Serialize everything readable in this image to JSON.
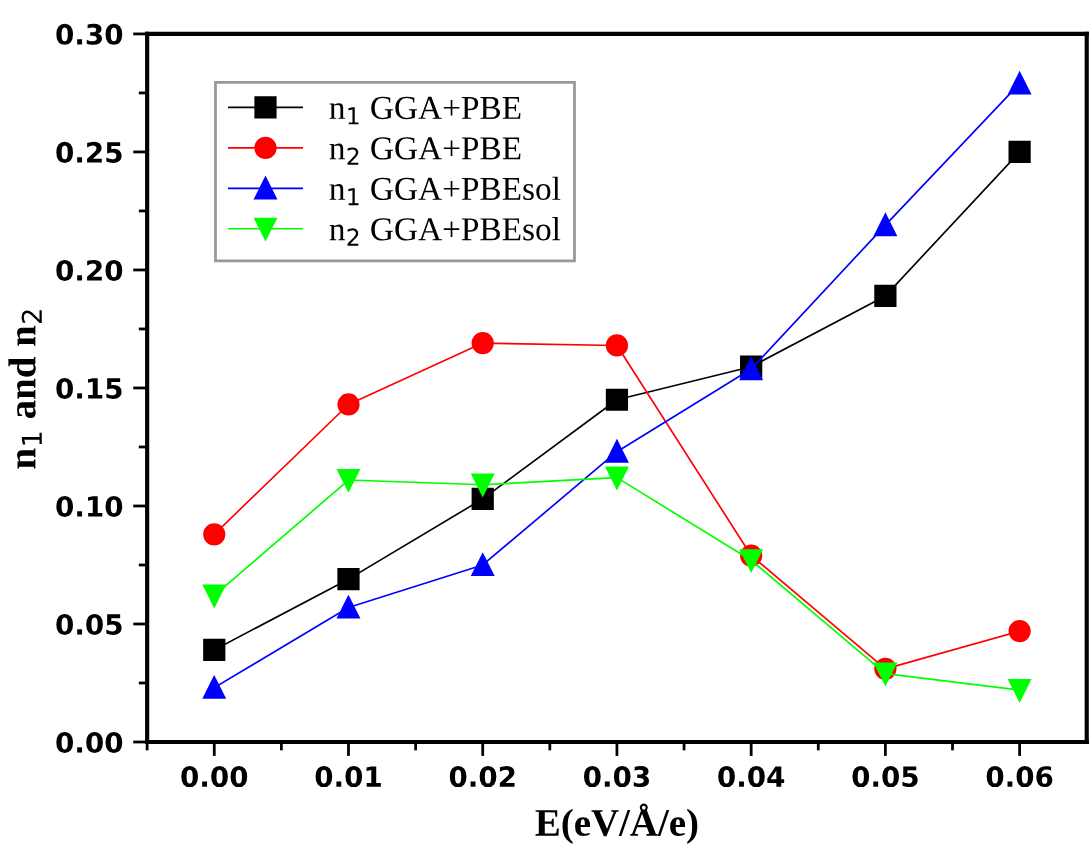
{
  "chart_data": {
    "type": "line",
    "xlabel": "E(eV/Å/e)",
    "ylabel": "n$_{1}$ and n$_{2}$",
    "x": [
      0.0,
      0.01,
      0.02,
      0.03,
      0.04,
      0.05,
      0.06
    ],
    "xlim": [
      -0.005,
      0.065
    ],
    "xticks": [
      {
        "value": 0.0,
        "label": "0.00"
      },
      {
        "value": 0.01,
        "label": "0.01"
      },
      {
        "value": 0.02,
        "label": "0.02"
      },
      {
        "value": 0.03,
        "label": "0.03"
      },
      {
        "value": 0.04,
        "label": "0.04"
      },
      {
        "value": 0.05,
        "label": "0.05"
      },
      {
        "value": 0.06,
        "label": "0.06"
      }
    ],
    "ylim": [
      0.0,
      0.3
    ],
    "yticks": [
      {
        "value": 0.0,
        "label": "0.00"
      },
      {
        "value": 0.05,
        "label": "0.05"
      },
      {
        "value": 0.1,
        "label": "0.10"
      },
      {
        "value": 0.15,
        "label": "0.15"
      },
      {
        "value": 0.2,
        "label": "0.20"
      },
      {
        "value": 0.25,
        "label": "0.25"
      },
      {
        "value": 0.3,
        "label": "0.30"
      }
    ],
    "series": [
      {
        "name": "n$_{1}$ GGA+PBE",
        "color": "#000000",
        "marker": "square",
        "values": [
          0.039,
          0.069,
          0.103,
          0.145,
          0.159,
          0.189,
          0.25
        ]
      },
      {
        "name": "n$_{2}$ GGA+PBE",
        "color": "#ff0000",
        "marker": "circle",
        "values": [
          0.088,
          0.143,
          0.169,
          0.168,
          0.079,
          0.031,
          0.047
        ]
      },
      {
        "name": "n$_{1}$ GGA+PBEsol",
        "color": "#0000ff",
        "marker": "triangle",
        "values": [
          0.023,
          0.057,
          0.075,
          0.123,
          0.158,
          0.219,
          0.279
        ]
      },
      {
        "name": "n$_{2}$ GGA+PBEsol",
        "color": "#00ff00",
        "marker": "triangle_down",
        "values": [
          0.062,
          0.111,
          0.109,
          0.112,
          0.077,
          0.029,
          0.022
        ]
      }
    ],
    "legend": "top left",
    "grid": false,
    "line_style": "solid"
  }
}
